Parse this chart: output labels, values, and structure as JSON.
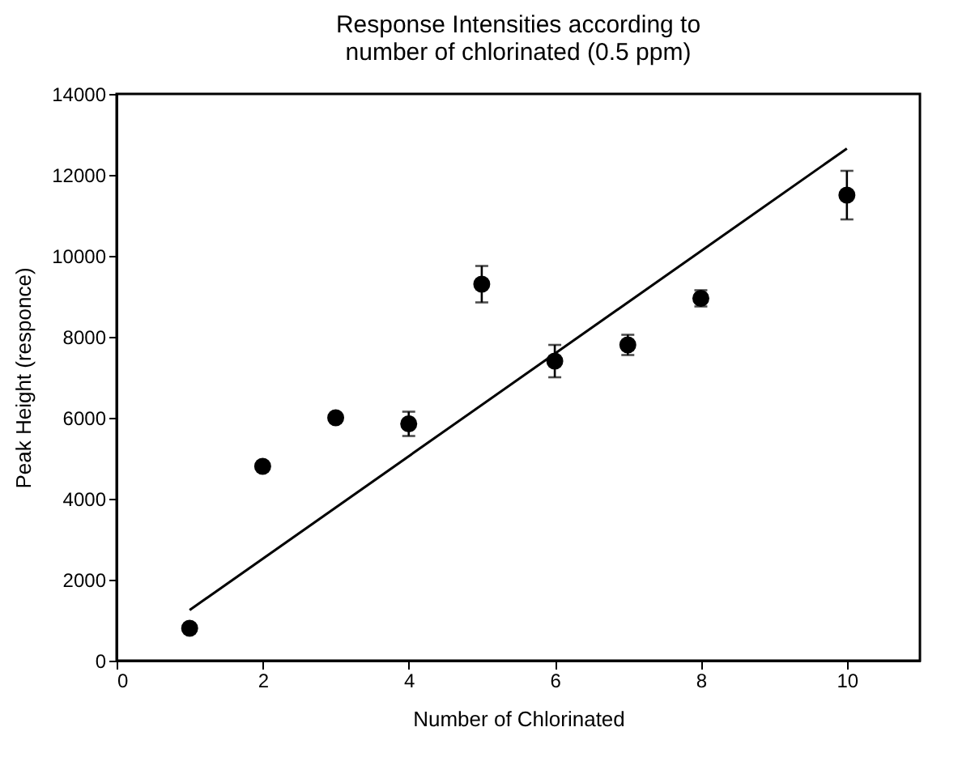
{
  "chart_data": {
    "type": "scatter",
    "title": "Response Intensities according to\nnumber of chlorinated (0.5 ppm)",
    "xlabel": "Number of Chlorinated",
    "ylabel": "Peak Height (responce)",
    "xlim": [
      0,
      11
    ],
    "xticks": [
      0,
      2,
      4,
      6,
      8,
      10
    ],
    "ylim": [
      0,
      14000
    ],
    "yticks": [
      0,
      2000,
      4000,
      6000,
      8000,
      10000,
      12000,
      14000
    ],
    "series": [
      {
        "color": "#000000",
        "marker": "circle",
        "x": [
          1,
          2,
          3,
          4,
          5,
          6,
          7,
          8,
          10
        ],
        "values": [
          800,
          4800,
          6000,
          5850,
          9300,
          7400,
          7800,
          8950,
          11500
        ],
        "errors": [
          null,
          null,
          null,
          300,
          450,
          400,
          250,
          200,
          600
        ]
      },
      {
        "type": "line",
        "color": "#000000",
        "x": [
          1,
          10
        ],
        "values": [
          1250,
          12650
        ]
      }
    ]
  }
}
